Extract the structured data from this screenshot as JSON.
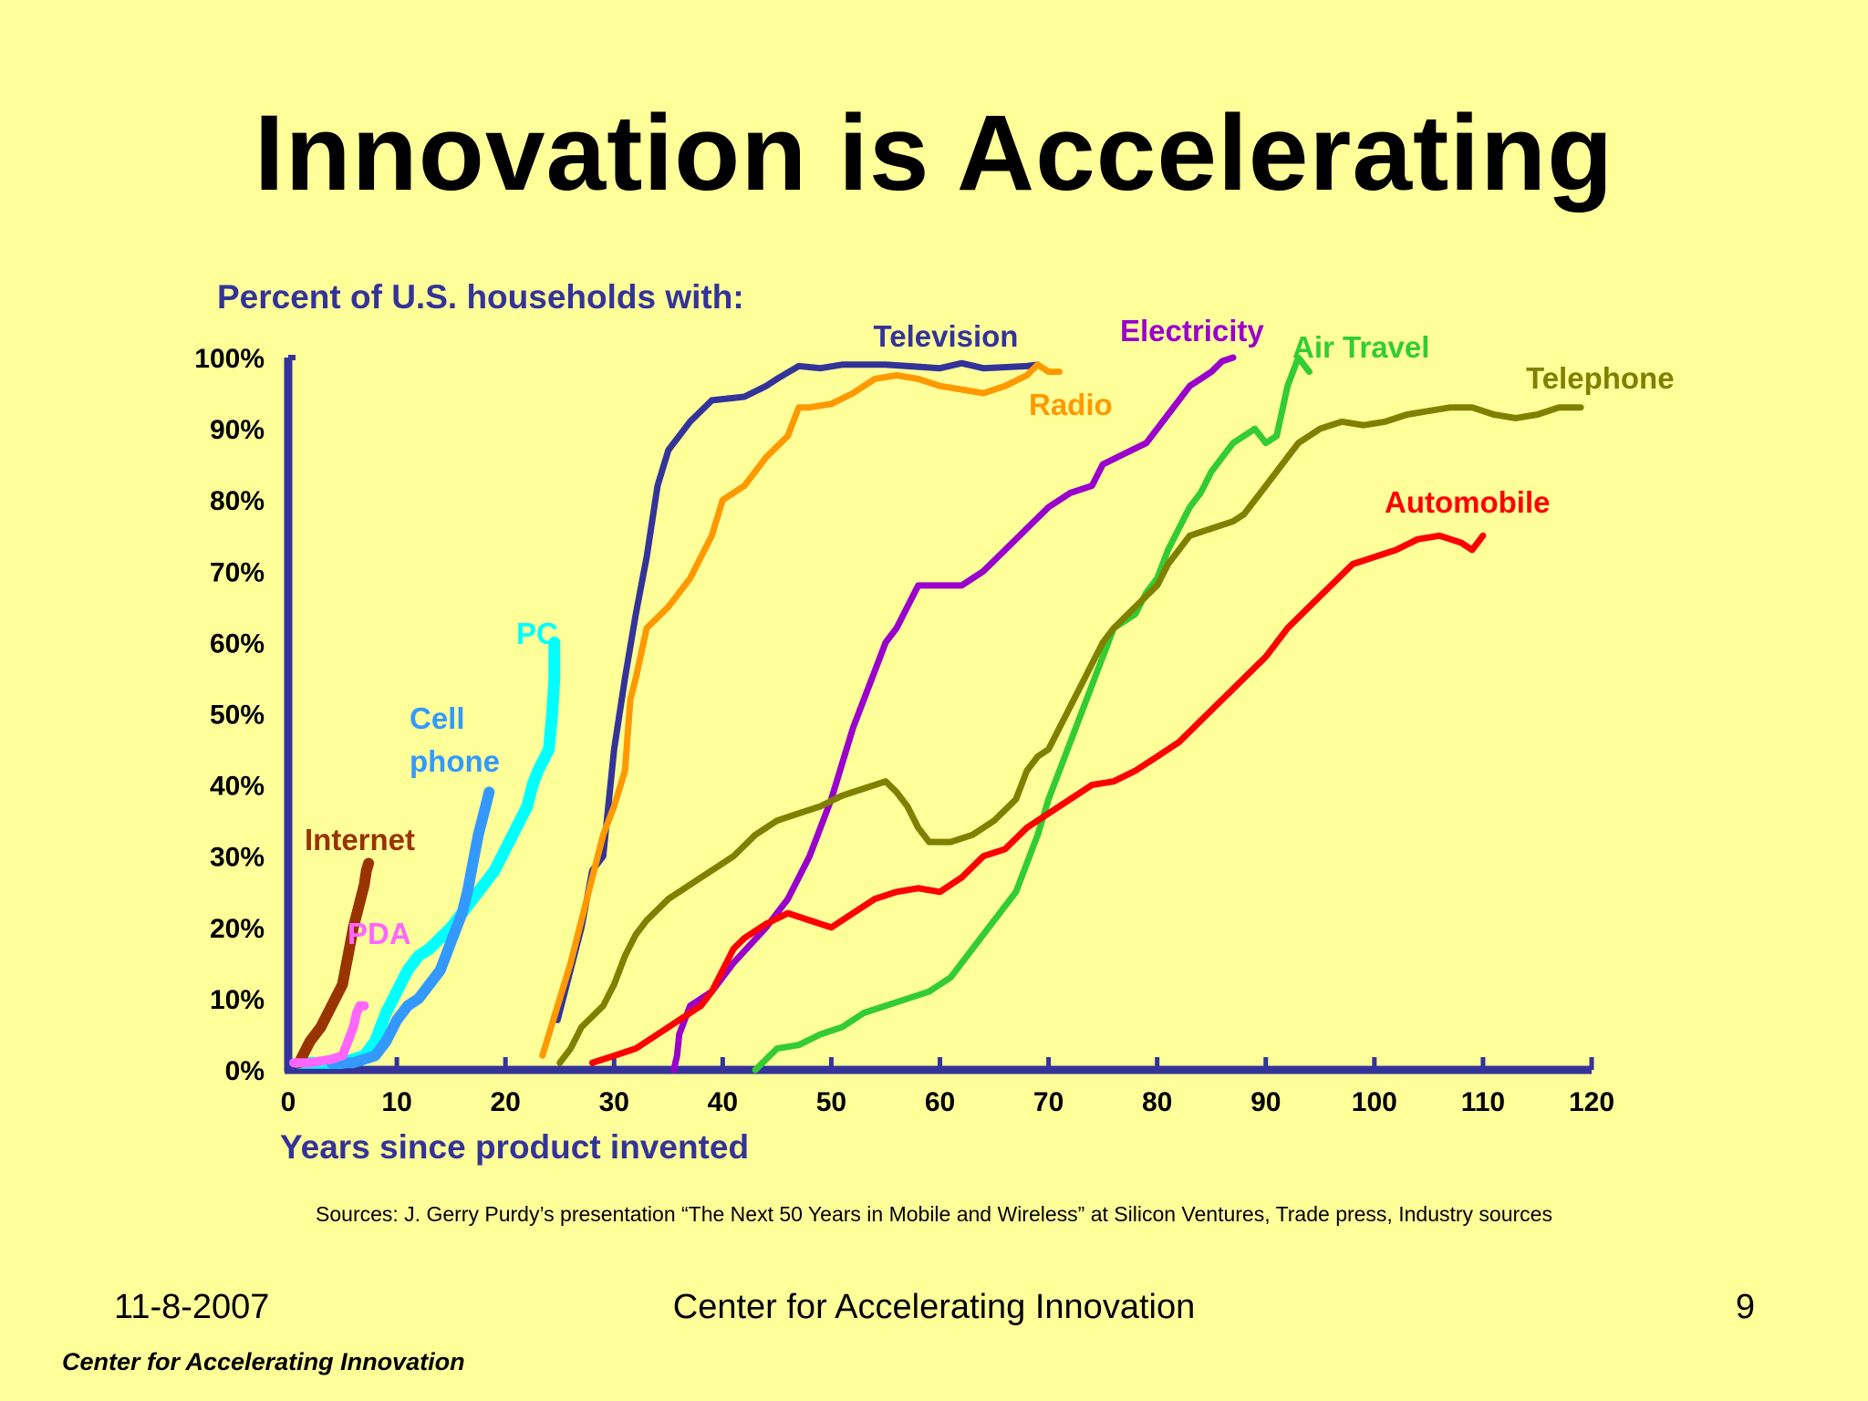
{
  "slide": {
    "title": "Innovation is Accelerating",
    "sources": "Sources:  J. Gerry Purdy’s presentation “The Next 50 Years in Mobile and Wireless” at Silicon Ventures, Trade press, Industry sources",
    "footer_date": "11-8-2007",
    "footer_center": "Center for Accelerating Innovation",
    "footer_page": "9",
    "brand": "Center for Accelerating Innovation"
  },
  "colors": {
    "background": "#FFFF99",
    "axis": "#333399"
  },
  "chart_data": {
    "type": "line",
    "title": "Percent of U.S. households with:",
    "xlabel": "Years since product invented",
    "ylabel": "",
    "xlim": [
      0,
      120
    ],
    "ylim": [
      0,
      100
    ],
    "x_ticks": [
      "0",
      "10",
      "20",
      "30",
      "40",
      "50",
      "60",
      "70",
      "80",
      "90",
      "100",
      "110",
      "120"
    ],
    "y_ticks": [
      "0%",
      "10%",
      "20%",
      "30%",
      "40%",
      "50%",
      "60%",
      "70%",
      "80%",
      "90%",
      "100%"
    ],
    "grid": false,
    "legend": "inline labels",
    "series": [
      {
        "name": "Television",
        "color": "#333399",
        "points": [
          [
            24.8,
            7
          ],
          [
            27,
            20
          ],
          [
            28,
            28
          ],
          [
            29,
            30
          ],
          [
            30,
            45
          ],
          [
            31,
            55
          ],
          [
            32,
            64
          ],
          [
            33,
            72
          ],
          [
            34,
            82
          ],
          [
            35,
            87
          ],
          [
            37,
            91
          ],
          [
            39,
            94
          ],
          [
            42,
            94.5
          ],
          [
            44,
            96
          ],
          [
            45,
            97
          ],
          [
            47,
            98.8
          ],
          [
            49,
            98.5
          ],
          [
            51,
            99
          ],
          [
            55,
            99
          ],
          [
            60,
            98.5
          ],
          [
            62,
            99.2
          ],
          [
            64,
            98.5
          ],
          [
            68,
            98.8
          ],
          [
            69,
            99
          ]
        ]
      },
      {
        "name": "Radio",
        "color": "#FF9900",
        "points": [
          [
            23.4,
            2
          ],
          [
            24,
            5
          ],
          [
            26,
            15
          ],
          [
            28,
            27
          ],
          [
            29,
            33
          ],
          [
            30,
            37
          ],
          [
            31,
            42
          ],
          [
            31.5,
            52
          ],
          [
            32,
            55
          ],
          [
            33,
            62
          ],
          [
            35,
            65
          ],
          [
            37,
            69
          ],
          [
            38,
            72
          ],
          [
            39,
            75
          ],
          [
            40,
            80
          ],
          [
            42,
            82
          ],
          [
            44,
            86
          ],
          [
            46,
            89
          ],
          [
            47,
            93
          ],
          [
            48,
            93
          ],
          [
            50,
            93.5
          ],
          [
            52,
            95
          ],
          [
            54,
            97
          ],
          [
            56,
            97.5
          ],
          [
            58,
            97
          ],
          [
            60,
            96
          ],
          [
            62,
            95.5
          ],
          [
            64,
            95
          ],
          [
            66,
            96
          ],
          [
            68,
            97.5
          ],
          [
            69,
            99
          ],
          [
            70,
            98
          ],
          [
            71,
            98
          ]
        ]
      },
      {
        "name": "Electricity",
        "color": "#9900CC",
        "points": [
          [
            35.5,
            0
          ],
          [
            35.8,
            2
          ],
          [
            36,
            5
          ],
          [
            37,
            9
          ],
          [
            39,
            11
          ],
          [
            41,
            15
          ],
          [
            44,
            20
          ],
          [
            46,
            24
          ],
          [
            48,
            30
          ],
          [
            50,
            38
          ],
          [
            51,
            43
          ],
          [
            52,
            48
          ],
          [
            53,
            52
          ],
          [
            54,
            56
          ],
          [
            55,
            60
          ],
          [
            56,
            62
          ],
          [
            57,
            65
          ],
          [
            58,
            68
          ],
          [
            60,
            68
          ],
          [
            62,
            68
          ],
          [
            64,
            70
          ],
          [
            66,
            73
          ],
          [
            68,
            76
          ],
          [
            70,
            79
          ],
          [
            72,
            81
          ],
          [
            74,
            82
          ],
          [
            75,
            85
          ],
          [
            77,
            86.5
          ],
          [
            79,
            88
          ],
          [
            80,
            90
          ],
          [
            81,
            92
          ],
          [
            82,
            94
          ],
          [
            83,
            96
          ],
          [
            84,
            97
          ],
          [
            85,
            98
          ],
          [
            86,
            99.5
          ],
          [
            87,
            100
          ]
        ]
      },
      {
        "name": "Air Travel",
        "color": "#33CC33",
        "points": [
          [
            43,
            0
          ],
          [
            45,
            3
          ],
          [
            47,
            3.5
          ],
          [
            49,
            5
          ],
          [
            51,
            6
          ],
          [
            53,
            8
          ],
          [
            55,
            9
          ],
          [
            57,
            10
          ],
          [
            59,
            11
          ],
          [
            61,
            13
          ],
          [
            63,
            17
          ],
          [
            65,
            21
          ],
          [
            67,
            25
          ],
          [
            68,
            29
          ],
          [
            69,
            33
          ],
          [
            70,
            38
          ],
          [
            71,
            42
          ],
          [
            72,
            46
          ],
          [
            73,
            50
          ],
          [
            74,
            54
          ],
          [
            75,
            58
          ],
          [
            76,
            62
          ],
          [
            78,
            64
          ],
          [
            79,
            67
          ],
          [
            80,
            69
          ],
          [
            81,
            73
          ],
          [
            82,
            76
          ],
          [
            83,
            79
          ],
          [
            84,
            81
          ],
          [
            85,
            84
          ],
          [
            86,
            86
          ],
          [
            87,
            88
          ],
          [
            88,
            89
          ],
          [
            89,
            90
          ],
          [
            90,
            88
          ],
          [
            91,
            89
          ],
          [
            92,
            96
          ],
          [
            93,
            100
          ],
          [
            94,
            98
          ]
        ]
      },
      {
        "name": "Telephone",
        "color": "#808000",
        "points": [
          [
            25,
            1
          ],
          [
            26,
            3
          ],
          [
            27,
            6
          ],
          [
            29,
            9
          ],
          [
            30,
            12
          ],
          [
            31,
            16
          ],
          [
            32,
            19
          ],
          [
            33,
            21
          ],
          [
            35,
            24
          ],
          [
            37,
            26
          ],
          [
            39,
            28
          ],
          [
            41,
            30
          ],
          [
            43,
            33
          ],
          [
            45,
            35
          ],
          [
            47,
            36
          ],
          [
            49,
            37
          ],
          [
            51,
            38.5
          ],
          [
            53,
            39.5
          ],
          [
            55,
            40.5
          ],
          [
            56,
            39
          ],
          [
            57,
            37
          ],
          [
            58,
            34
          ],
          [
            59,
            32
          ],
          [
            61,
            32
          ],
          [
            63,
            33
          ],
          [
            65,
            35
          ],
          [
            67,
            38
          ],
          [
            68,
            42
          ],
          [
            69,
            44
          ],
          [
            70,
            45
          ],
          [
            71,
            48
          ],
          [
            72,
            51
          ],
          [
            73,
            54
          ],
          [
            74,
            57
          ],
          [
            75,
            60
          ],
          [
            76,
            62
          ],
          [
            78,
            65
          ],
          [
            80,
            68
          ],
          [
            81,
            71
          ],
          [
            82,
            73
          ],
          [
            83,
            75
          ],
          [
            85,
            76
          ],
          [
            87,
            77
          ],
          [
            88,
            78
          ],
          [
            89,
            80
          ],
          [
            90,
            82
          ],
          [
            91,
            84
          ],
          [
            92,
            86
          ],
          [
            93,
            88
          ],
          [
            95,
            90
          ],
          [
            97,
            91
          ],
          [
            99,
            90.5
          ],
          [
            101,
            91
          ],
          [
            103,
            92
          ],
          [
            105,
            92.5
          ],
          [
            107,
            93
          ],
          [
            109,
            93
          ],
          [
            111,
            92
          ],
          [
            113,
            91.5
          ],
          [
            115,
            92
          ],
          [
            117,
            93
          ],
          [
            119,
            93
          ]
        ]
      },
      {
        "name": "Automobile",
        "color": "#FF0000",
        "points": [
          [
            28,
            1
          ],
          [
            30,
            2
          ],
          [
            32,
            3
          ],
          [
            34,
            5
          ],
          [
            36,
            7
          ],
          [
            38,
            9
          ],
          [
            39,
            11
          ],
          [
            40,
            14
          ],
          [
            41,
            17
          ],
          [
            42,
            18.5
          ],
          [
            44,
            20.5
          ],
          [
            46,
            22
          ],
          [
            48,
            21
          ],
          [
            50,
            20
          ],
          [
            52,
            22
          ],
          [
            54,
            24
          ],
          [
            56,
            25
          ],
          [
            58,
            25.5
          ],
          [
            60,
            25
          ],
          [
            62,
            27
          ],
          [
            64,
            30
          ],
          [
            66,
            31
          ],
          [
            68,
            34
          ],
          [
            70,
            36
          ],
          [
            72,
            38
          ],
          [
            74,
            40
          ],
          [
            76,
            40.5
          ],
          [
            78,
            42
          ],
          [
            80,
            44
          ],
          [
            82,
            46
          ],
          [
            84,
            49
          ],
          [
            86,
            52
          ],
          [
            88,
            55
          ],
          [
            90,
            58
          ],
          [
            92,
            62
          ],
          [
            94,
            65
          ],
          [
            96,
            68
          ],
          [
            98,
            71
          ],
          [
            100,
            72
          ],
          [
            102,
            73
          ],
          [
            104,
            74.5
          ],
          [
            106,
            75
          ],
          [
            108,
            74
          ],
          [
            109,
            73
          ],
          [
            110,
            75
          ]
        ]
      },
      {
        "name": "PC",
        "color": "#00FFFF",
        "points": [
          [
            1,
            1
          ],
          [
            3,
            1
          ],
          [
            5,
            1
          ],
          [
            7,
            2
          ],
          [
            8,
            4
          ],
          [
            9,
            8
          ],
          [
            10,
            11
          ],
          [
            11,
            14
          ],
          [
            12,
            16
          ],
          [
            13,
            17
          ],
          [
            14,
            18.5
          ],
          [
            15,
            20
          ],
          [
            16,
            22
          ],
          [
            17,
            24
          ],
          [
            18,
            26
          ],
          [
            19,
            28
          ],
          [
            20,
            31
          ],
          [
            21,
            34
          ],
          [
            22,
            37
          ],
          [
            22.5,
            40
          ],
          [
            23,
            42
          ],
          [
            24,
            45
          ],
          [
            24.3,
            50
          ],
          [
            24.5,
            55
          ],
          [
            24.5,
            60
          ]
        ]
      },
      {
        "name": "Cell phone",
        "color": "#3399FF",
        "points": [
          [
            4,
            1
          ],
          [
            6,
            1
          ],
          [
            8,
            2
          ],
          [
            9,
            4
          ],
          [
            10,
            7
          ],
          [
            11,
            9
          ],
          [
            12,
            10
          ],
          [
            13,
            12
          ],
          [
            14,
            14
          ],
          [
            14.5,
            16
          ],
          [
            15,
            18
          ],
          [
            15.5,
            20
          ],
          [
            16,
            22
          ],
          [
            16.5,
            25
          ],
          [
            17,
            29
          ],
          [
            17.5,
            33
          ],
          [
            18,
            36
          ],
          [
            18.5,
            39
          ]
        ]
      },
      {
        "name": "Internet",
        "color": "#993300",
        "points": [
          [
            1,
            1
          ],
          [
            2,
            4
          ],
          [
            3,
            6
          ],
          [
            4,
            9
          ],
          [
            5,
            12
          ],
          [
            5.5,
            16
          ],
          [
            6,
            20
          ],
          [
            6.5,
            23
          ],
          [
            7,
            26
          ],
          [
            7.2,
            28
          ],
          [
            7.4,
            29
          ]
        ]
      },
      {
        "name": "PDA",
        "color": "#FF66FF",
        "points": [
          [
            0.5,
            1
          ],
          [
            2,
            1
          ],
          [
            4,
            1.5
          ],
          [
            5,
            2
          ],
          [
            5.5,
            4
          ],
          [
            6,
            6
          ],
          [
            6.3,
            8
          ],
          [
            6.6,
            9
          ],
          [
            7,
            9
          ]
        ]
      }
    ],
    "series_labels": [
      {
        "name": "Television",
        "text": "Television"
      },
      {
        "name": "Radio",
        "text": "Radio"
      },
      {
        "name": "Electricity",
        "text": "Electricity"
      },
      {
        "name": "Air Travel",
        "text": "Air Travel"
      },
      {
        "name": "Telephone",
        "text": "Telephone"
      },
      {
        "name": "Automobile",
        "text": "Automobile"
      },
      {
        "name": "PC",
        "text": "PC"
      },
      {
        "name": "Cell phone",
        "text": "Cell phone"
      },
      {
        "name": "Internet",
        "text": "Internet"
      },
      {
        "name": "PDA",
        "text": "PDA"
      }
    ]
  }
}
